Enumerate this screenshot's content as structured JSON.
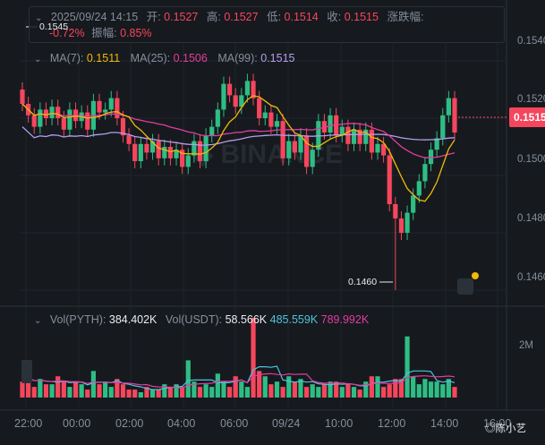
{
  "info": {
    "date": "2025/09/24 14:15",
    "open_label": "开:",
    "open": "0.1527",
    "high_label": "高:",
    "high": "0.1527",
    "low_label": "低:",
    "low": "0.1514",
    "close_label": "收:",
    "close": "0.1515",
    "change_label": "涨跌幅:",
    "change": "-0.72%",
    "amp_label": "振幅:",
    "amp": "0.85%"
  },
  "ma": {
    "ma7_label": "MA(7):",
    "ma7": "0.1511",
    "ma7_color": "#f0b90b",
    "ma25_label": "MA(25):",
    "ma25": "0.1506",
    "ma25_color": "#e33ca0",
    "ma99_label": "MA(99):",
    "ma99": "0.1515",
    "ma99_color": "#b89cf0"
  },
  "volume": {
    "pyth_label": "Vol(PYTH):",
    "pyth": "384.402K",
    "usdt_label": "Vol(USDT):",
    "usdt": "58.566K",
    "v1": "485.559K",
    "v2": "789.992K",
    "axis": "2M"
  },
  "y_axis": [
    "0.1540",
    "0.1520",
    "0.1500",
    "0.1480",
    "0.1460"
  ],
  "current_price": "0.1515",
  "high_marker": "0.1545",
  "low_marker": "0.1460",
  "x_axis": [
    "22:00",
    "00:00",
    "02:00",
    "04:00",
    "06:00",
    "09/24",
    "10:00",
    "12:00",
    "14:00",
    "16:00"
  ],
  "watermark": "◎陈小艺",
  "colors": {
    "up": "#2ebd85",
    "down": "#f6465d",
    "bg": "#161a1e"
  },
  "chart_data": {
    "type": "candlestick",
    "opens": [
      0.153,
      0.1525,
      0.1521,
      0.1517,
      0.1523,
      0.152,
      0.1524,
      0.152,
      0.1516,
      0.1523,
      0.1519,
      0.1522,
      0.1516,
      0.1526,
      0.1522,
      0.1523,
      0.1527,
      0.152,
      0.1514,
      0.1511,
      0.1505,
      0.1511,
      0.1508,
      0.1512,
      0.1506,
      0.151,
      0.1506,
      0.1509,
      0.1503,
      0.1507,
      0.1512,
      0.1505,
      0.1514,
      0.1517,
      0.1523,
      0.1532,
      0.1528,
      0.1524,
      0.1528,
      0.1533,
      0.1527,
      0.152,
      0.1522,
      0.1517,
      0.1519,
      0.1506,
      0.1512,
      0.1508,
      0.1514,
      0.1503,
      0.1509,
      0.1519,
      0.1515,
      0.1521,
      0.1514,
      0.1517,
      0.1511,
      0.1516,
      0.1511,
      0.1516,
      0.1508,
      0.1511,
      0.1507,
      0.149,
      0.1485,
      0.148,
      0.1487,
      0.1493,
      0.1498,
      0.1504,
      0.1509,
      0.1513,
      0.1521,
      0.1527
    ],
    "closes": [
      0.1525,
      0.1521,
      0.1517,
      0.1523,
      0.152,
      0.1524,
      0.152,
      0.1516,
      0.1523,
      0.1519,
      0.1522,
      0.1516,
      0.1526,
      0.1522,
      0.1523,
      0.1527,
      0.152,
      0.1514,
      0.1511,
      0.1505,
      0.1511,
      0.1508,
      0.1512,
      0.1506,
      0.151,
      0.1506,
      0.1509,
      0.1503,
      0.1507,
      0.1512,
      0.1505,
      0.1514,
      0.1517,
      0.1523,
      0.1532,
      0.1528,
      0.1524,
      0.1528,
      0.1533,
      0.1527,
      0.152,
      0.1522,
      0.1517,
      0.1519,
      0.1506,
      0.1512,
      0.1508,
      0.1514,
      0.1503,
      0.1509,
      0.1519,
      0.1515,
      0.1521,
      0.1514,
      0.1517,
      0.1511,
      0.1516,
      0.1511,
      0.1516,
      0.1508,
      0.1511,
      0.1507,
      0.149,
      0.1485,
      0.148,
      0.1487,
      0.1493,
      0.1498,
      0.1504,
      0.1509,
      0.1513,
      0.1521,
      0.1527,
      0.1515
    ],
    "volumes": [
      6,
      9,
      4,
      7,
      5,
      5,
      8,
      6,
      4,
      6,
      5,
      3,
      10,
      5,
      6,
      4,
      7,
      5,
      3,
      3,
      2,
      4,
      3,
      3,
      5,
      4,
      5,
      4,
      14,
      6,
      4,
      5,
      4,
      9,
      6,
      4,
      8,
      6,
      4,
      30,
      10,
      8,
      5,
      6,
      4,
      8,
      6,
      7,
      4,
      5,
      4,
      5,
      6,
      6,
      4,
      5,
      4,
      3,
      6,
      8,
      8,
      4,
      5,
      7,
      7,
      23,
      8,
      5,
      7,
      6,
      6,
      5,
      7,
      4
    ],
    "ma7_line_note": "",
    "ylim": [
      0.1455,
      0.1555
    ]
  }
}
